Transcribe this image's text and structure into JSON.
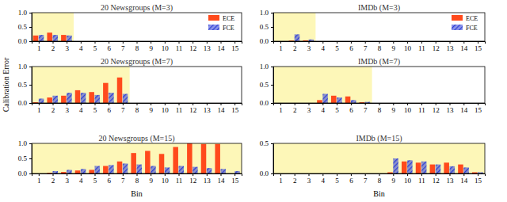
{
  "chart_data": [
    {
      "type": "bar",
      "title": "20 Newsgroups (M=3)",
      "legend": "upper right",
      "x": [
        1,
        2,
        3
      ],
      "series": [
        {
          "name": "ECE",
          "color": "#ff4a1c",
          "values": [
            0.2,
            0.3,
            0.22
          ]
        },
        {
          "name": "FCE",
          "color": "#2f3fd6",
          "line_style": "hatched",
          "values": [
            0.22,
            0.22,
            0.2
          ]
        }
      ],
      "xlim": [
        0.5,
        15.5
      ],
      "xticks": [
        1,
        2,
        3,
        4,
        5,
        6,
        7,
        8,
        9,
        10,
        11,
        12,
        13,
        14,
        15
      ],
      "ylim": [
        0,
        1
      ],
      "yticks": [
        {
          "value": 0,
          "label": "0.0"
        },
        {
          "value": 0.5,
          "label": "0.5"
        },
        {
          "value": 1,
          "label": "1.0"
        }
      ]
    },
    {
      "type": "bar",
      "title": "IMDb (M=3)",
      "legend": "upper right",
      "x": [
        1,
        2,
        3
      ],
      "series": [
        {
          "name": "ECE",
          "color": "#ff4a1c",
          "values": [
            0,
            0.02,
            0.03
          ]
        },
        {
          "name": "FCE",
          "color": "#2f3fd6",
          "line_style": "hatched",
          "values": [
            0,
            0.24,
            0.06
          ]
        }
      ],
      "xlim": [
        0.5,
        15.5
      ],
      "xticks": [
        1,
        2,
        3,
        4,
        5,
        6,
        7,
        8,
        9,
        10,
        11,
        12,
        13,
        14,
        15
      ],
      "ylim": [
        0,
        1
      ],
      "yticks": [
        {
          "value": 0,
          "label": "0.0"
        },
        {
          "value": 0.5,
          "label": "0.5"
        },
        {
          "value": 1,
          "label": "1.0"
        }
      ]
    },
    {
      "type": "bar",
      "title": "20 Newsgroups (M=7)",
      "y_label": "Calibration Error",
      "x": [
        1,
        2,
        3,
        4,
        5,
        6,
        7
      ],
      "series": [
        {
          "name": "ECE",
          "color": "#ff4a1c",
          "values": [
            0.02,
            0.15,
            0.2,
            0.35,
            0.3,
            0.55,
            0.7
          ]
        },
        {
          "name": "FCE",
          "color": "#2f3fd6",
          "line_style": "hatched",
          "values": [
            0.12,
            0.2,
            0.28,
            0.28,
            0.22,
            0.28,
            0.25
          ]
        }
      ],
      "xlim": [
        0.5,
        15.5
      ],
      "xticks": [
        1,
        2,
        3,
        4,
        5,
        6,
        7,
        8,
        9,
        10,
        11,
        12,
        13,
        14,
        15
      ],
      "ylim": [
        0,
        1
      ],
      "yticks": [
        {
          "value": 0,
          "label": "0.0"
        },
        {
          "value": 0.5,
          "label": "0.5"
        },
        {
          "value": 1,
          "label": "1.0"
        }
      ]
    },
    {
      "type": "bar",
      "title": "IMDb (M=7)",
      "x": [
        1,
        2,
        3,
        4,
        5,
        6,
        7
      ],
      "series": [
        {
          "name": "ECE",
          "color": "#ff4a1c",
          "values": [
            0,
            0,
            0,
            0.08,
            0.2,
            0.18,
            0.02
          ]
        },
        {
          "name": "FCE",
          "color": "#2f3fd6",
          "line_style": "hatched",
          "values": [
            0,
            0,
            0,
            0.25,
            0.15,
            0.08,
            0.03
          ]
        }
      ],
      "xlim": [
        0.5,
        15.5
      ],
      "xticks": [
        1,
        2,
        3,
        4,
        5,
        6,
        7,
        8,
        9,
        10,
        11,
        12,
        13,
        14,
        15
      ],
      "ylim": [
        0,
        1
      ],
      "yticks": [
        {
          "value": 0,
          "label": "0.0"
        },
        {
          "value": 0.5,
          "label": "0.5"
        },
        {
          "value": 1,
          "label": "1.0"
        }
      ]
    },
    {
      "type": "bar",
      "title": "20 Newsgroups (M=15)",
      "x_label": "Bin",
      "x": [
        1,
        2,
        3,
        4,
        5,
        6,
        7,
        8,
        9,
        10,
        11,
        12,
        13,
        14,
        15
      ],
      "series": [
        {
          "name": "ECE",
          "color": "#ff4a1c",
          "values": [
            0,
            0.02,
            0.05,
            0.1,
            0.12,
            0.25,
            0.4,
            0.68,
            0.75,
            0.65,
            0.88,
            1.0,
            0.98,
            0.98,
            0
          ]
        },
        {
          "name": "FCE",
          "color": "#2f3fd6",
          "line_style": "hatched",
          "values": [
            0,
            0.08,
            0.12,
            0.15,
            0.25,
            0.28,
            0.33,
            0.3,
            0.25,
            0.2,
            0.25,
            0.22,
            0.18,
            0.15,
            0.08
          ]
        }
      ],
      "xlim": [
        0.5,
        15.5
      ],
      "xticks": [
        1,
        2,
        3,
        4,
        5,
        6,
        7,
        8,
        9,
        10,
        11,
        12,
        13,
        14,
        15
      ],
      "ylim": [
        0,
        1
      ],
      "yticks": [
        {
          "value": 0,
          "label": "0.0"
        },
        {
          "value": 0.5,
          "label": "0.5"
        },
        {
          "value": 1,
          "label": "1.0"
        }
      ]
    },
    {
      "type": "bar",
      "title": "IMDb (M=15)",
      "x_label": "Bin",
      "x": [
        1,
        2,
        3,
        4,
        5,
        6,
        7,
        8,
        9,
        10,
        11,
        12,
        13,
        14,
        15
      ],
      "series": [
        {
          "name": "ECE",
          "color": "#ff4a1c",
          "values": [
            0,
            0,
            0,
            0,
            0,
            0,
            0,
            0,
            0.02,
            0.2,
            0.18,
            0.15,
            0.18,
            0.15,
            0.02
          ]
        },
        {
          "name": "FCE",
          "color": "#2f3fd6",
          "line_style": "hatched",
          "values": [
            0,
            0,
            0,
            0,
            0,
            0,
            0,
            0,
            0.25,
            0.22,
            0.2,
            0.15,
            0.12,
            0.1,
            0.02
          ]
        }
      ],
      "xlim": [
        0.5,
        15.5
      ],
      "xticks": [
        1,
        2,
        3,
        4,
        5,
        6,
        7,
        8,
        9,
        10,
        11,
        12,
        13,
        14,
        15
      ],
      "ylim": [
        0,
        0.5
      ],
      "yticks": [
        {
          "value": 0,
          "label": "0.0"
        },
        {
          "value": 0.5,
          "label": "0.5"
        }
      ]
    }
  ]
}
